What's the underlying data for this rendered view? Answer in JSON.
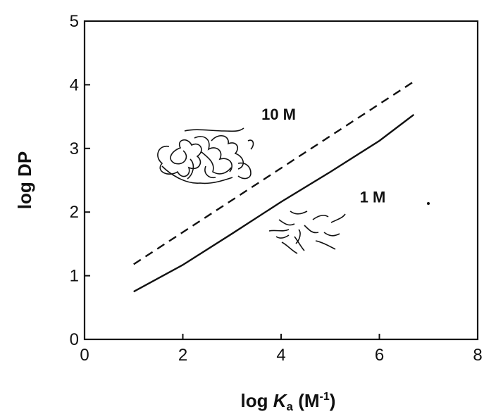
{
  "chart_data": {
    "type": "line",
    "xlabel": "log K_a (M^-1)",
    "xlabel_parts": {
      "prefix": "log ",
      "symbol": "K",
      "subscript": "a",
      "unit_open": " (M",
      "unit_exp": "-1",
      "unit_close": ")"
    },
    "ylabel": "log DP",
    "xlim": [
      0,
      8
    ],
    "ylim": [
      0,
      5
    ],
    "x_ticks": [
      0,
      2,
      4,
      6,
      8
    ],
    "y_ticks": [
      0,
      1,
      2,
      3,
      4,
      5
    ],
    "grid": false,
    "legend": "none",
    "series": [
      {
        "name": "10 M",
        "style": "dashed",
        "color": "#111111",
        "x": [
          1.0,
          6.7
        ],
        "y": [
          1.18,
          4.05
        ]
      },
      {
        "name": "1 M",
        "style": "solid",
        "color": "#111111",
        "x": [
          1.0,
          2.0,
          3.0,
          4.0,
          5.0,
          6.0,
          6.7
        ],
        "y": [
          0.75,
          1.17,
          1.66,
          2.16,
          2.63,
          3.12,
          3.53
        ]
      }
    ],
    "annotations": [
      {
        "text": "10 M",
        "x": 3.6,
        "y": 3.45
      },
      {
        "text": "1 M",
        "x": 5.6,
        "y": 2.15
      }
    ]
  }
}
